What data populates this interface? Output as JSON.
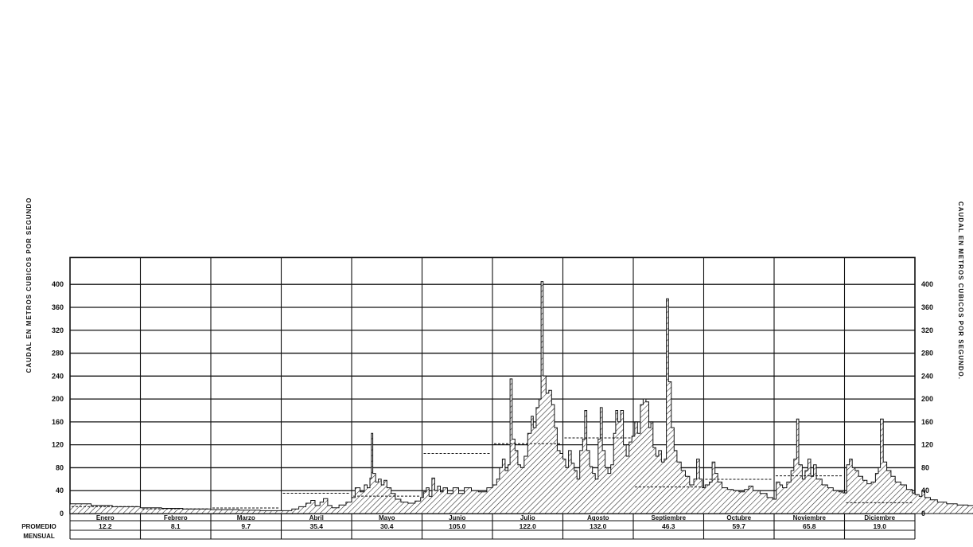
{
  "chart_data": {
    "type": "area",
    "ylabel_left": "CAUDAL EN METROS CUBICOS POR SEGUNDO",
    "ylabel_right": "CAUDAL EN METROS CUBICOS POR SEGUNDO.",
    "avg_label_1": "PROMEDIO",
    "avg_label_2": "MENSUAL",
    "ylim": [
      0,
      440
    ],
    "yticks": [
      "0",
      "40",
      "80",
      "120",
      "160",
      "200",
      "240",
      "280",
      "320",
      "360",
      "400"
    ],
    "months": [
      "Enero",
      "Febrero",
      "Marzo",
      "Abril",
      "Mayo",
      "Junio",
      "Julio",
      "Agosto",
      "Septiembre",
      "Octubre",
      "Noviembre",
      "Diciembre"
    ],
    "monthly_average_labels": [
      "12.2",
      "8.1",
      "9.7",
      "35.4",
      "30.4",
      "105.0",
      "122.0",
      "132.0",
      "46.3",
      "59.7",
      "65.8",
      "19.0"
    ],
    "monthly_average": [
      12.2,
      8.1,
      9.7,
      35.4,
      30.4,
      105.0,
      122.0,
      132.0,
      46.3,
      59.7,
      65.8,
      19.0
    ],
    "grid": true,
    "daily_flow_month_fraction_points": [
      [
        0.0,
        17
      ],
      [
        0.3,
        14
      ],
      [
        0.6,
        12
      ],
      [
        1.0,
        10
      ],
      [
        1.3,
        9
      ],
      [
        1.6,
        8
      ],
      [
        2.0,
        7
      ],
      [
        2.4,
        6
      ],
      [
        2.7,
        5
      ],
      [
        3.0,
        5
      ],
      [
        3.15,
        8
      ],
      [
        3.25,
        12
      ],
      [
        3.35,
        18
      ],
      [
        3.42,
        23
      ],
      [
        3.48,
        14
      ],
      [
        3.55,
        20
      ],
      [
        3.6,
        26
      ],
      [
        3.66,
        14
      ],
      [
        3.72,
        10
      ],
      [
        3.82,
        15
      ],
      [
        3.92,
        20
      ],
      [
        4.0,
        28
      ],
      [
        4.05,
        45
      ],
      [
        4.12,
        38
      ],
      [
        4.18,
        50
      ],
      [
        4.22,
        45
      ],
      [
        4.26,
        62
      ],
      [
        4.28,
        140
      ],
      [
        4.3,
        70
      ],
      [
        4.34,
        55
      ],
      [
        4.38,
        60
      ],
      [
        4.42,
        50
      ],
      [
        4.46,
        58
      ],
      [
        4.5,
        45
      ],
      [
        4.56,
        35
      ],
      [
        4.62,
        25
      ],
      [
        4.7,
        20
      ],
      [
        4.8,
        18
      ],
      [
        4.9,
        22
      ],
      [
        4.98,
        28
      ],
      [
        5.02,
        38
      ],
      [
        5.06,
        45
      ],
      [
        5.1,
        30
      ],
      [
        5.14,
        62
      ],
      [
        5.18,
        40
      ],
      [
        5.22,
        48
      ],
      [
        5.26,
        38
      ],
      [
        5.3,
        45
      ],
      [
        5.36,
        35
      ],
      [
        5.44,
        45
      ],
      [
        5.52,
        35
      ],
      [
        5.6,
        45
      ],
      [
        5.7,
        40
      ],
      [
        5.8,
        38
      ],
      [
        5.92,
        45
      ],
      [
        6.0,
        50
      ],
      [
        6.06,
        60
      ],
      [
        6.1,
        80
      ],
      [
        6.14,
        95
      ],
      [
        6.18,
        75
      ],
      [
        6.22,
        85
      ],
      [
        6.25,
        235
      ],
      [
        6.28,
        130
      ],
      [
        6.32,
        110
      ],
      [
        6.36,
        85
      ],
      [
        6.4,
        80
      ],
      [
        6.45,
        100
      ],
      [
        6.5,
        140
      ],
      [
        6.55,
        170
      ],
      [
        6.58,
        150
      ],
      [
        6.62,
        185
      ],
      [
        6.66,
        200
      ],
      [
        6.69,
        405
      ],
      [
        6.72,
        240
      ],
      [
        6.76,
        210
      ],
      [
        6.8,
        215
      ],
      [
        6.84,
        190
      ],
      [
        6.88,
        150
      ],
      [
        6.92,
        110
      ],
      [
        6.96,
        105
      ],
      [
        7.0,
        95
      ],
      [
        7.04,
        80
      ],
      [
        7.08,
        110
      ],
      [
        7.12,
        88
      ],
      [
        7.16,
        75
      ],
      [
        7.2,
        60
      ],
      [
        7.24,
        110
      ],
      [
        7.28,
        130
      ],
      [
        7.31,
        180
      ],
      [
        7.34,
        110
      ],
      [
        7.38,
        82
      ],
      [
        7.42,
        70
      ],
      [
        7.46,
        60
      ],
      [
        7.5,
        130
      ],
      [
        7.53,
        185
      ],
      [
        7.56,
        110
      ],
      [
        7.6,
        80
      ],
      [
        7.64,
        70
      ],
      [
        7.68,
        85
      ],
      [
        7.72,
        140
      ],
      [
        7.75,
        180
      ],
      [
        7.78,
        160
      ],
      [
        7.82,
        180
      ],
      [
        7.86,
        120
      ],
      [
        7.9,
        100
      ],
      [
        7.94,
        125
      ],
      [
        7.98,
        135
      ],
      [
        8.02,
        160
      ],
      [
        8.06,
        140
      ],
      [
        8.1,
        190
      ],
      [
        8.14,
        200
      ],
      [
        8.18,
        195
      ],
      [
        8.22,
        150
      ],
      [
        8.25,
        160
      ],
      [
        8.28,
        115
      ],
      [
        8.32,
        100
      ],
      [
        8.36,
        110
      ],
      [
        8.4,
        90
      ],
      [
        8.44,
        95
      ],
      [
        8.47,
        375
      ],
      [
        8.5,
        230
      ],
      [
        8.54,
        150
      ],
      [
        8.58,
        110
      ],
      [
        8.62,
        90
      ],
      [
        8.68,
        75
      ],
      [
        8.74,
        65
      ],
      [
        8.8,
        50
      ],
      [
        8.86,
        60
      ],
      [
        8.9,
        95
      ],
      [
        8.94,
        60
      ],
      [
        8.98,
        45
      ],
      [
        9.02,
        50
      ],
      [
        9.08,
        55
      ],
      [
        9.12,
        90
      ],
      [
        9.16,
        70
      ],
      [
        9.2,
        55
      ],
      [
        9.26,
        45
      ],
      [
        9.34,
        42
      ],
      [
        9.42,
        40
      ],
      [
        9.5,
        38
      ],
      [
        9.58,
        42
      ],
      [
        9.64,
        48
      ],
      [
        9.7,
        40
      ],
      [
        9.8,
        35
      ],
      [
        9.9,
        28
      ],
      [
        9.98,
        25
      ],
      [
        10.03,
        55
      ],
      [
        10.08,
        50
      ],
      [
        10.12,
        45
      ],
      [
        10.18,
        55
      ],
      [
        10.24,
        75
      ],
      [
        10.28,
        95
      ],
      [
        10.32,
        165
      ],
      [
        10.35,
        85
      ],
      [
        10.4,
        60
      ],
      [
        10.44,
        75
      ],
      [
        10.48,
        95
      ],
      [
        10.52,
        65
      ],
      [
        10.56,
        85
      ],
      [
        10.6,
        60
      ],
      [
        10.68,
        50
      ],
      [
        10.76,
        45
      ],
      [
        10.84,
        40
      ],
      [
        10.92,
        38
      ],
      [
        10.98,
        36
      ],
      [
        11.03,
        85
      ],
      [
        11.07,
        95
      ],
      [
        11.11,
        80
      ],
      [
        11.15,
        75
      ],
      [
        11.2,
        65
      ],
      [
        11.26,
        58
      ],
      [
        11.32,
        52
      ],
      [
        11.38,
        55
      ],
      [
        11.44,
        70
      ],
      [
        11.48,
        80
      ],
      [
        11.51,
        165
      ],
      [
        11.55,
        90
      ],
      [
        11.6,
        75
      ],
      [
        11.66,
        65
      ],
      [
        11.72,
        55
      ],
      [
        11.8,
        50
      ],
      [
        11.88,
        42
      ],
      [
        11.96,
        36
      ],
      [
        12.0,
        33
      ],
      [
        12.06,
        30
      ],
      [
        12.1,
        40
      ],
      [
        12.14,
        28
      ],
      [
        12.22,
        24
      ],
      [
        12.32,
        20
      ],
      [
        12.45,
        17
      ],
      [
        12.6,
        15
      ],
      [
        12.75,
        14
      ],
      [
        12.88,
        12
      ],
      [
        13.0,
        10
      ]
    ]
  }
}
